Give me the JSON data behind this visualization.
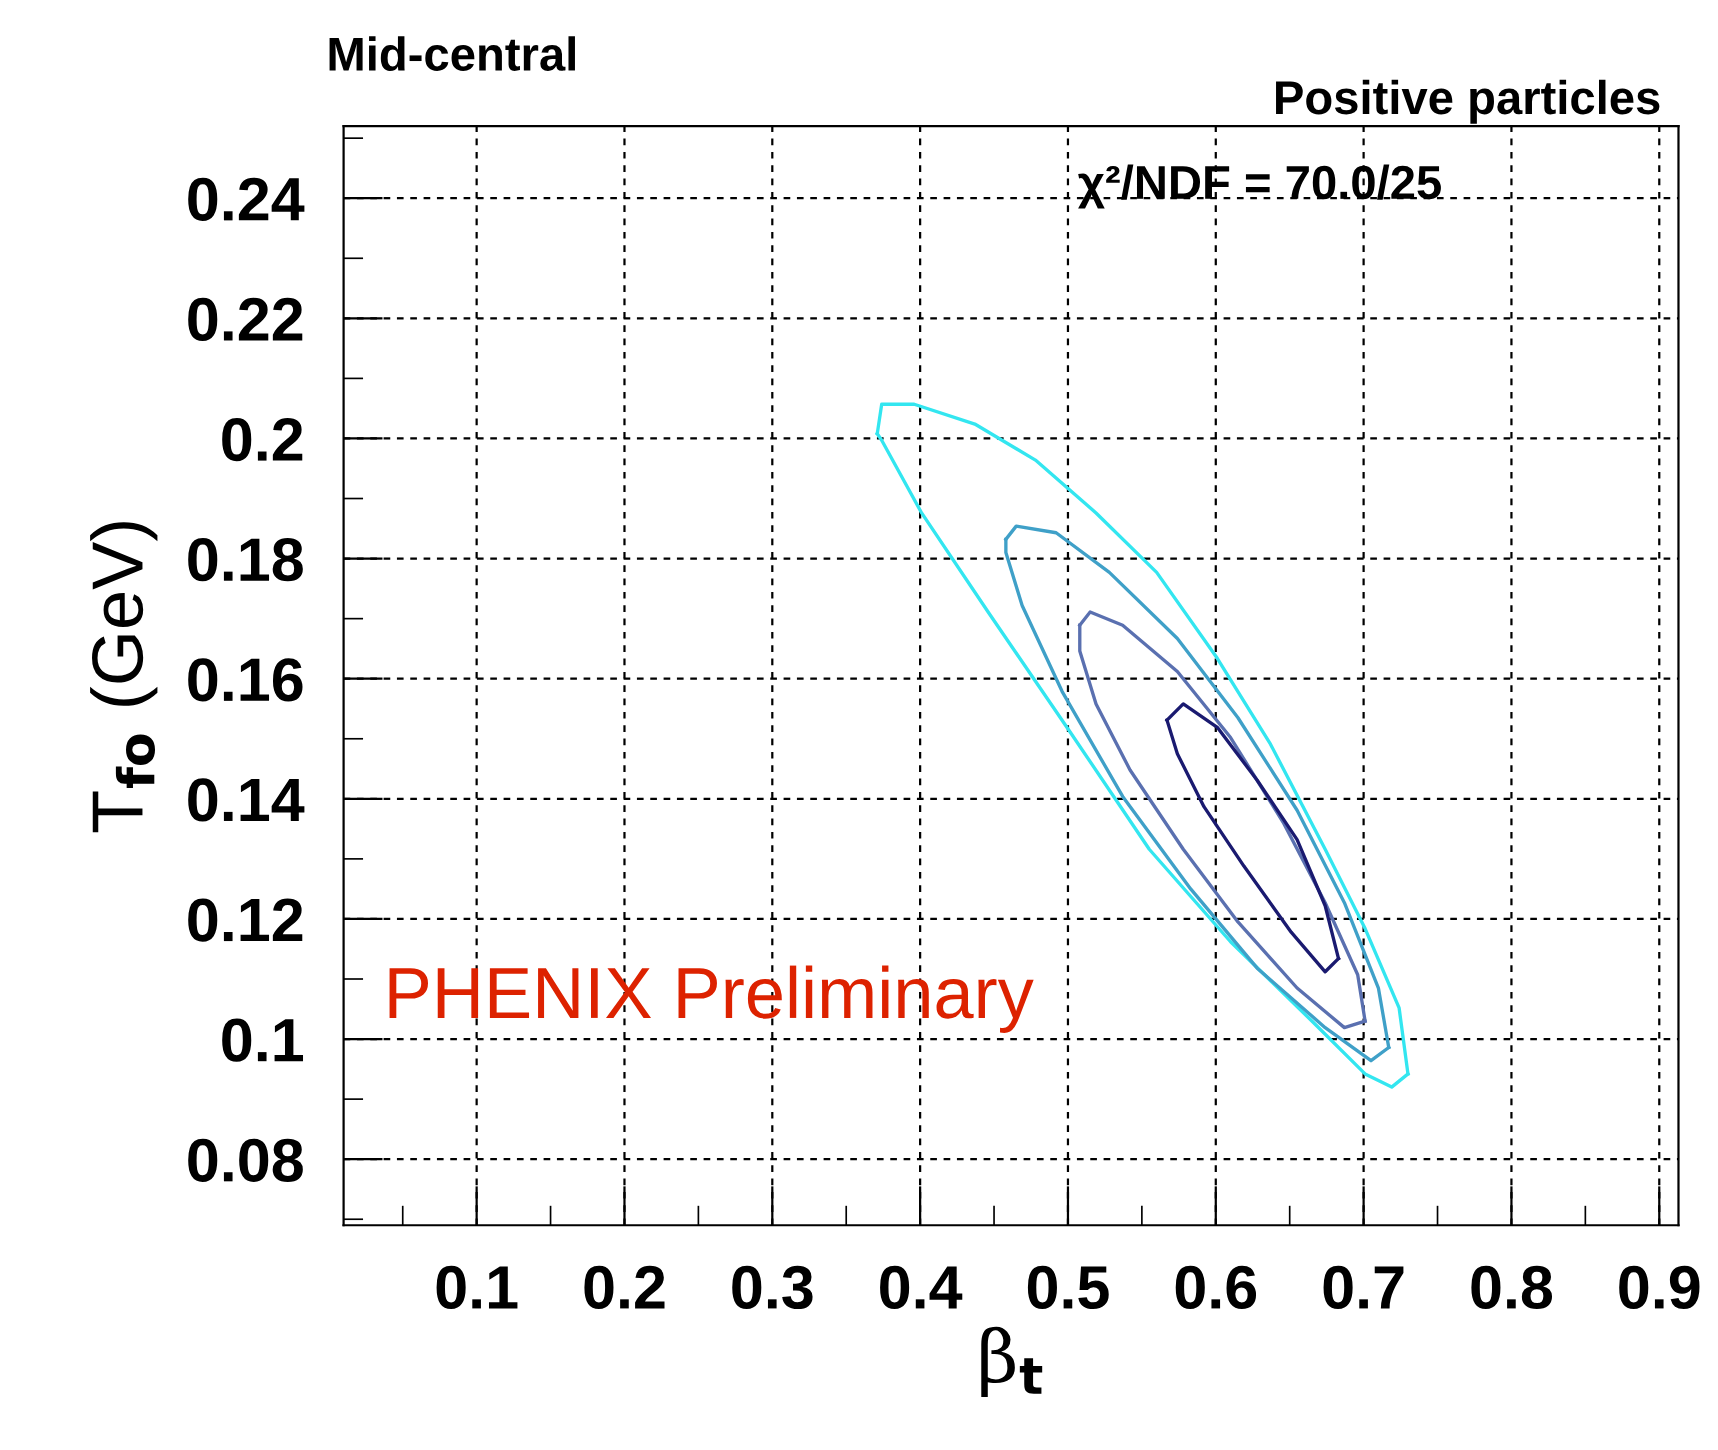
{
  "chart_data": {
    "type": "line",
    "title": "Mid-central",
    "subtitle": "Positive particles",
    "xlabel": "β$_{t}$",
    "ylabel": "T$_{fo}$ (GeV)",
    "annotations": [
      "χ²/NDF = 70.0/25",
      "PHENIX Preliminary"
    ],
    "xlim": [
      0.01,
      0.913
    ],
    "ylim": [
      0.069,
      0.252
    ],
    "xticks": [
      0.1,
      0.2,
      0.3,
      0.4,
      0.5,
      0.6,
      0.7,
      0.8,
      0.9
    ],
    "yticks": [
      0.08,
      0.1,
      0.12,
      0.14,
      0.16,
      0.18,
      0.2,
      0.22,
      0.24
    ],
    "grid": true,
    "line_style": "solid",
    "series": [
      {
        "color": "#33e6f0",
        "x": [
          0.371,
          0.374,
          0.396,
          0.437,
          0.478,
          0.519,
          0.56,
          0.601,
          0.637,
          0.674,
          0.701,
          0.724,
          0.73
        ],
        "values": [
          0.2008,
          0.2057,
          0.2057,
          0.2024,
          0.1964,
          0.1876,
          0.1777,
          0.1634,
          0.1491,
          0.1316,
          0.1184,
          0.1052,
          0.0942
        ]
      },
      {
        "color": "#33e6f0",
        "x": [
          0.371,
          0.374,
          0.401,
          0.446,
          0.501,
          0.555,
          0.61,
          0.665,
          0.701,
          0.719,
          0.73
        ],
        "values": [
          0.2008,
          0.1997,
          0.1876,
          0.1711,
          0.1513,
          0.1316,
          0.1162,
          0.103,
          0.0942,
          0.092,
          0.0942
        ]
      },
      {
        "color": "#3fa0c8",
        "x": [
          0.458,
          0.465,
          0.492,
          0.528,
          0.574,
          0.615,
          0.655,
          0.687,
          0.71,
          0.717
        ],
        "values": [
          0.1832,
          0.1854,
          0.1843,
          0.1777,
          0.1667,
          0.1535,
          0.1381,
          0.1227,
          0.1085,
          0.0986
        ]
      },
      {
        "color": "#3fa0c8",
        "x": [
          0.458,
          0.458,
          0.469,
          0.496,
          0.537,
          0.583,
          0.628,
          0.674,
          0.705,
          0.717
        ],
        "values": [
          0.1832,
          0.181,
          0.1722,
          0.1579,
          0.1404,
          0.125,
          0.1118,
          0.1019,
          0.0964,
          0.0986
        ]
      },
      {
        "color": "#5a70b0",
        "x": [
          0.508,
          0.515,
          0.537,
          0.574,
          0.61,
          0.646,
          0.674,
          0.696,
          0.701
        ],
        "values": [
          0.1689,
          0.1711,
          0.1689,
          0.1612,
          0.1502,
          0.1359,
          0.1227,
          0.1107,
          0.103
        ]
      },
      {
        "color": "#5a70b0",
        "x": [
          0.508,
          0.508,
          0.519,
          0.542,
          0.578,
          0.615,
          0.655,
          0.687,
          0.701
        ],
        "values": [
          0.1689,
          0.1646,
          0.1558,
          0.1448,
          0.1316,
          0.1195,
          0.1085,
          0.1019,
          0.103
        ]
      },
      {
        "color": "#1a1a70",
        "x": [
          0.567,
          0.578,
          0.601,
          0.628,
          0.655,
          0.674,
          0.683
        ],
        "values": [
          0.1531,
          0.1558,
          0.1519,
          0.1431,
          0.1332,
          0.1222,
          0.1134
        ]
      },
      {
        "color": "#1a1a70",
        "x": [
          0.567,
          0.574,
          0.592,
          0.619,
          0.651,
          0.674,
          0.683
        ],
        "values": [
          0.1531,
          0.1475,
          0.1387,
          0.1288,
          0.1178,
          0.1112,
          0.1134
        ]
      }
    ]
  }
}
